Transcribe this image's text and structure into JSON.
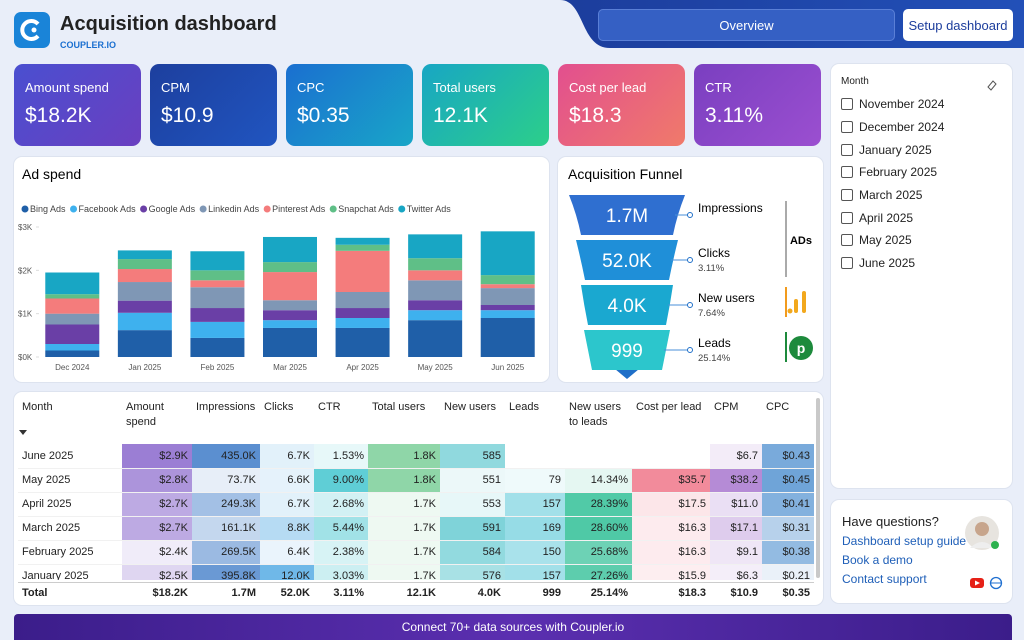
{
  "header": {
    "title": "Acquisition dashboard",
    "brand": "COUPLER.IO",
    "nav": [
      "Overview",
      "Setup dashboard"
    ]
  },
  "kpis": [
    {
      "label": "Amount spend",
      "value": "$18.2K"
    },
    {
      "label": "CPM",
      "value": "$10.9"
    },
    {
      "label": "CPC",
      "value": "$0.35"
    },
    {
      "label": "Total users",
      "value": "12.1K"
    },
    {
      "label": "Cost per lead",
      "value": "$18.3"
    },
    {
      "label": "CTR",
      "value": "3.11%"
    }
  ],
  "chart_data": [
    {
      "type": "bar",
      "stacked": true,
      "title": "Ad spend",
      "legend": "top",
      "categories": [
        "Dec 2024",
        "Jan 2025",
        "Feb 2025",
        "Mar 2025",
        "Apr 2025",
        "May 2025",
        "Jun 2025"
      ],
      "series": [
        {
          "name": "Bing Ads",
          "color": "#1f5fa8",
          "values": [
            150,
            620,
            440,
            670,
            670,
            850,
            900
          ]
        },
        {
          "name": "Facebook Ads",
          "color": "#3eb1ee",
          "values": [
            150,
            400,
            370,
            180,
            230,
            230,
            180
          ]
        },
        {
          "name": "Google Ads",
          "color": "#6a3fa6",
          "values": [
            450,
            280,
            320,
            230,
            230,
            230,
            120
          ]
        },
        {
          "name": "Linkedin Ads",
          "color": "#7f97b5",
          "values": [
            250,
            430,
            480,
            230,
            370,
            460,
            390
          ]
        },
        {
          "name": "Pinterest Ads",
          "color": "#f47c7c",
          "values": [
            350,
            300,
            160,
            650,
            950,
            230,
            90
          ]
        },
        {
          "name": "Snapchat Ads",
          "color": "#5fbf87",
          "values": [
            100,
            230,
            230,
            230,
            140,
            280,
            210
          ]
        },
        {
          "name": "Twitter Ads",
          "color": "#18a6c4",
          "values": [
            500,
            200,
            440,
            580,
            160,
            550,
            1010
          ]
        }
      ],
      "ylim": [
        0,
        3000
      ],
      "yticks": [
        {
          "value": 0,
          "label": "$0K"
        },
        {
          "value": 1000,
          "label": "$1K"
        },
        {
          "value": 2000,
          "label": "$2K"
        },
        {
          "value": 3000,
          "label": "$3K"
        }
      ]
    },
    {
      "type": "funnel",
      "title": "Acquisition Funnel",
      "side_label": "ADs",
      "categories": [
        "Impressions",
        "Clicks",
        "New users",
        "Leads"
      ],
      "values": [
        1700000,
        52000,
        4000,
        999
      ],
      "value_labels": [
        "1.7M",
        "52.0K",
        "4.0K",
        "999"
      ],
      "rate_labels": [
        null,
        "3.11%",
        "7.64%",
        "25.14%"
      ]
    }
  ],
  "slicer": {
    "label": "Month",
    "options": [
      "November 2024",
      "December 2024",
      "January 2025",
      "February 2025",
      "March 2025",
      "April 2025",
      "May 2025",
      "June 2025"
    ]
  },
  "table": {
    "columns": [
      "Month",
      "Amount spend",
      "Impressions",
      "Clicks",
      "CTR",
      "Total users",
      "New users",
      "Leads",
      "New users to leads",
      "Cost per lead",
      "CPM",
      "CPC"
    ],
    "rows": [
      [
        "June 2025",
        "$2.9K",
        "435.0K",
        "6.7K",
        "1.53%",
        "1.8K",
        "585",
        null,
        null,
        null,
        "$6.7",
        "$0.43"
      ],
      [
        "May 2025",
        "$2.8K",
        "73.7K",
        "6.6K",
        "9.00%",
        "1.8K",
        "551",
        "79",
        "14.34%",
        "$35.7",
        "$38.2",
        "$0.45"
      ],
      [
        "April 2025",
        "$2.7K",
        "249.3K",
        "6.7K",
        "2.68%",
        "1.7K",
        "553",
        "157",
        "28.39%",
        "$17.5",
        "$11.0",
        "$0.41"
      ],
      [
        "March 2025",
        "$2.7K",
        "161.1K",
        "8.8K",
        "5.44%",
        "1.7K",
        "591",
        "169",
        "28.60%",
        "$16.3",
        "$17.1",
        "$0.31"
      ],
      [
        "February 2025",
        "$2.4K",
        "269.5K",
        "6.4K",
        "2.38%",
        "1.7K",
        "584",
        "150",
        "25.68%",
        "$16.3",
        "$9.1",
        "$0.38"
      ],
      [
        "January 2025",
        "$2.5K",
        "395.8K",
        "12.0K",
        "3.03%",
        "1.7K",
        "576",
        "157",
        "27.26%",
        "$15.9",
        "$6.3",
        "$0.21"
      ]
    ],
    "total": [
      "Total",
      "$18.2K",
      "1.7M",
      "52.0K",
      "3.11%",
      "12.1K",
      "4.0K",
      "999",
      "25.14%",
      "$18.3",
      "$10.9",
      "$0.35"
    ]
  },
  "help": {
    "title": "Have questions?",
    "links": [
      "Dashboard setup guide",
      "Book a demo",
      "Contact support"
    ]
  },
  "footer": {
    "text": "Connect 70+ data sources with Coupler.io"
  }
}
